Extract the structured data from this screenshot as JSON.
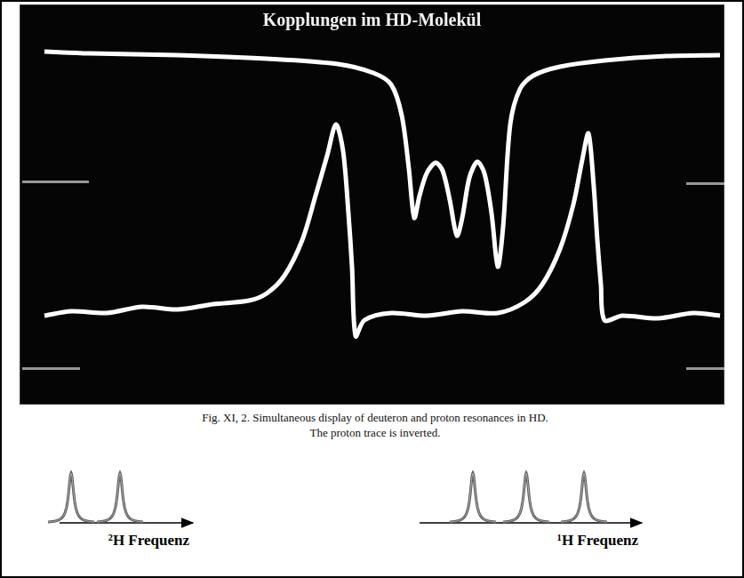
{
  "chart_data": {
    "type": "line",
    "title": "Kopplungen im HD-Molekül",
    "xlim": [
      0,
      793
    ],
    "ylim": [
      0,
      450
    ],
    "grid": false,
    "tick_labels": false,
    "series": [
      {
        "color": "#ffffff",
        "line_style": "solid",
        "x": [
          28,
          78,
          178,
          278,
          358,
          398,
          418,
          430,
          438,
          444,
          450,
          458,
          468,
          476,
          484,
          492,
          498,
          506,
          515,
          523,
          531,
          538,
          544,
          552,
          563,
          578,
          608,
          658,
          728,
          788
        ],
        "values": [
          397,
          395,
          393,
          389,
          383,
          373,
          360,
          325,
          265,
          210,
          235,
          260,
          272,
          263,
          230,
          190,
          210,
          255,
          273,
          260,
          215,
          155,
          200,
          315,
          355,
          370,
          380,
          387,
          392,
          393
        ]
      },
      {
        "color": "#ffffff",
        "line_style": "solid",
        "x": [
          28,
          58,
          98,
          138,
          178,
          218,
          258,
          278,
          298,
          318,
          333,
          346,
          356,
          364,
          370,
          374,
          378,
          388,
          418,
          458,
          498,
          538,
          568,
          588,
          608,
          623,
          633,
          640,
          646,
          650,
          654,
          658,
          678,
          718,
          758,
          788
        ],
        "values": [
          100,
          105,
          103,
          110,
          107,
          113,
          117,
          125,
          145,
          185,
          235,
          280,
          315,
          285,
          215,
          155,
          77,
          95,
          103,
          100,
          105,
          103,
          115,
          135,
          175,
          225,
          275,
          305,
          245,
          185,
          135,
          95,
          100,
          97,
          103,
          100
        ]
      }
    ]
  },
  "caption": [
    "Fig. XI, 2. Simultaneous display of deuteron and proton resonances in HD.",
    "The proton trace is inverted."
  ],
  "spectra": [
    {
      "label": "²H Frequenz",
      "xlim": [
        0,
        150
      ],
      "peaks": [
        13,
        68
      ]
    },
    {
      "label": "¹H Frequenz",
      "xlim": [
        0,
        250
      ],
      "peaks": [
        60,
        120,
        185
      ]
    }
  ]
}
